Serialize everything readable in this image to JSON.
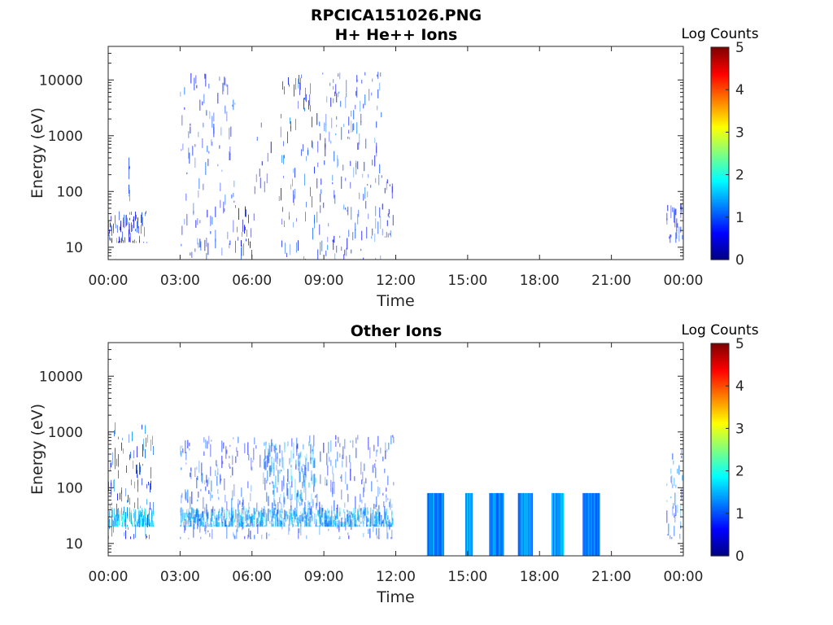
{
  "figure": {
    "file_title": "RPCICA151026.PNG"
  },
  "chart_data": [
    {
      "type": "heatmap",
      "title": "H+ He++ Ions",
      "xlabel": "Time",
      "ylabel": "Energy (eV)",
      "x_ticks": [
        "00:00",
        "03:00",
        "06:00",
        "09:00",
        "12:00",
        "15:00",
        "18:00",
        "21:00",
        "00:00"
      ],
      "y_ticks": [
        "10",
        "100",
        "1000",
        "10000"
      ],
      "ylim": [
        6,
        40000
      ],
      "y_scale": "log",
      "xlim_hours": [
        0,
        24
      ],
      "colorbar": {
        "label": "Log Counts",
        "ticks": [
          "0",
          "1",
          "2",
          "3",
          "4",
          "5"
        ],
        "range": [
          0,
          5
        ],
        "colormap": "jet"
      },
      "activity_bands": [
        {
          "start_h": 0.0,
          "end_h": 1.6,
          "e_min": 12,
          "e_max": 45,
          "level": 0.7,
          "density": 0.45
        },
        {
          "start_h": 0.85,
          "end_h": 0.95,
          "e_min": 12,
          "e_max": 500,
          "level": 0.9,
          "density": 0.9
        },
        {
          "start_h": 3.0,
          "end_h": 5.3,
          "e_min": 6,
          "e_max": 14000,
          "level": 0.8,
          "density": 0.55
        },
        {
          "start_h": 5.3,
          "end_h": 6.0,
          "e_min": 6,
          "e_max": 60,
          "level": 0.6,
          "density": 0.35
        },
        {
          "start_h": 6.0,
          "end_h": 7.2,
          "e_min": 15,
          "e_max": 9000,
          "level": 0.5,
          "density": 0.12
        },
        {
          "start_h": 7.2,
          "end_h": 8.6,
          "e_min": 6,
          "e_max": 14000,
          "level": 0.9,
          "density": 0.6
        },
        {
          "start_h": 8.7,
          "end_h": 11.4,
          "e_min": 6,
          "e_max": 14000,
          "level": 0.9,
          "density": 0.65
        },
        {
          "start_h": 11.4,
          "end_h": 11.9,
          "e_min": 15,
          "e_max": 200,
          "level": 0.6,
          "density": 0.35
        },
        {
          "start_h": 23.3,
          "end_h": 24.0,
          "e_min": 12,
          "e_max": 60,
          "level": 0.7,
          "density": 0.45
        }
      ]
    },
    {
      "type": "heatmap",
      "title": "Other Ions",
      "xlabel": "Time",
      "ylabel": "Energy (eV)",
      "x_ticks": [
        "00:00",
        "03:00",
        "06:00",
        "09:00",
        "12:00",
        "15:00",
        "18:00",
        "21:00",
        "00:00"
      ],
      "y_ticks": [
        "10",
        "100",
        "1000",
        "10000"
      ],
      "ylim": [
        6,
        40000
      ],
      "y_scale": "log",
      "xlim_hours": [
        0,
        24
      ],
      "colorbar": {
        "label": "Log Counts",
        "ticks": [
          "0",
          "1",
          "2",
          "3",
          "4",
          "5"
        ],
        "range": [
          0,
          5
        ],
        "colormap": "jet"
      },
      "activity_bands": [
        {
          "start_h": 0.0,
          "end_h": 1.9,
          "e_min": 12,
          "e_max": 1500,
          "level": 1.0,
          "density": 0.5
        },
        {
          "start_h": 0.0,
          "end_h": 1.9,
          "e_min": 20,
          "e_max": 45,
          "level": 1.6,
          "density": 0.8
        },
        {
          "start_h": 3.0,
          "end_h": 11.9,
          "e_min": 12,
          "e_max": 900,
          "level": 0.9,
          "density": 0.55
        },
        {
          "start_h": 3.0,
          "end_h": 11.9,
          "e_min": 20,
          "e_max": 45,
          "level": 1.4,
          "density": 0.85
        },
        {
          "start_h": 6.5,
          "end_h": 8.7,
          "e_min": 40,
          "e_max": 700,
          "level": 1.3,
          "density": 0.7
        },
        {
          "start_h": 13.3,
          "end_h": 14.0,
          "e_min": 6,
          "e_max": 80,
          "level": 1.3,
          "density": 1.0
        },
        {
          "start_h": 14.9,
          "end_h": 15.2,
          "e_min": 6,
          "e_max": 80,
          "level": 1.5,
          "density": 1.0
        },
        {
          "start_h": 15.9,
          "end_h": 16.5,
          "e_min": 6,
          "e_max": 80,
          "level": 1.2,
          "density": 1.0
        },
        {
          "start_h": 17.1,
          "end_h": 17.7,
          "e_min": 6,
          "e_max": 80,
          "level": 1.3,
          "density": 1.0
        },
        {
          "start_h": 18.5,
          "end_h": 19.0,
          "e_min": 6,
          "e_max": 80,
          "level": 1.4,
          "density": 1.0
        },
        {
          "start_h": 19.8,
          "end_h": 20.5,
          "e_min": 6,
          "e_max": 80,
          "level": 1.2,
          "density": 1.0
        },
        {
          "start_h": 23.3,
          "end_h": 24.0,
          "e_min": 12,
          "e_max": 500,
          "level": 1.1,
          "density": 0.55
        }
      ]
    }
  ]
}
